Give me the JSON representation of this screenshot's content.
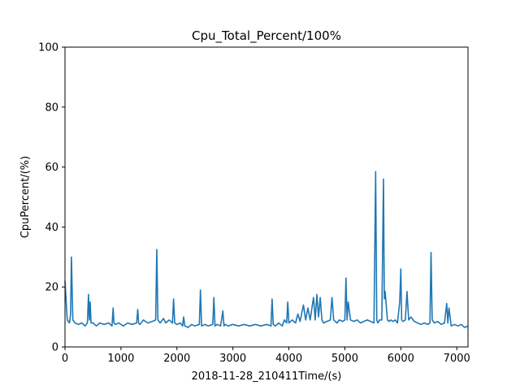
{
  "chart_data": {
    "type": "line",
    "title": "Cpu_Total_Percent/100%",
    "xlabel": "2018-11-28_210411Time/(s)",
    "ylabel": "CpuPercent/(%)",
    "xlim": [
      0,
      7200
    ],
    "ylim": [
      0,
      100
    ],
    "xticks": [
      0,
      1000,
      2000,
      3000,
      4000,
      5000,
      6000,
      7000
    ],
    "yticks": [
      0,
      20,
      40,
      60,
      80,
      100
    ],
    "grid": false,
    "legend": "none",
    "color": "#1f77b4",
    "series": [
      {
        "x": [
          0,
          40,
          80,
          100,
          115,
          140,
          180,
          240,
          300,
          360,
          400,
          420,
          435,
          450,
          465,
          500,
          560,
          620,
          700,
          780,
          840,
          860,
          875,
          900,
          960,
          1040,
          1120,
          1200,
          1280,
          1300,
          1315,
          1340,
          1400,
          1480,
          1560,
          1620,
          1640,
          1660,
          1700,
          1760,
          1800,
          1860,
          1920,
          1940,
          1960,
          2000,
          2060,
          2100,
          2120,
          2140,
          2200,
          2260,
          2320,
          2400,
          2420,
          2440,
          2500,
          2560,
          2640,
          2660,
          2680,
          2720,
          2780,
          2820,
          2840,
          2860,
          2920,
          3000,
          3100,
          3200,
          3300,
          3400,
          3500,
          3600,
          3680,
          3700,
          3720,
          3760,
          3820,
          3880,
          3920,
          3960,
          3980,
          4000,
          4060,
          4120,
          4160,
          4200,
          4260,
          4300,
          4340,
          4380,
          4440,
          4470,
          4500,
          4530,
          4560,
          4590,
          4620,
          4680,
          4740,
          4770,
          4800,
          4860,
          4900,
          4960,
          5000,
          5020,
          5040,
          5060,
          5100,
          5160,
          5220,
          5280,
          5340,
          5400,
          5460,
          5520,
          5550,
          5570,
          5590,
          5620,
          5660,
          5690,
          5705,
          5720,
          5760,
          5790,
          5820,
          5860,
          5900,
          5940,
          5980,
          6000,
          6015,
          6040,
          6080,
          6110,
          6140,
          6180,
          6240,
          6300,
          6360,
          6420,
          6480,
          6520,
          6540,
          6560,
          6600,
          6660,
          6720,
          6780,
          6820,
          6840,
          6860,
          6900,
          6960,
          7020,
          7080,
          7140,
          7200
        ],
        "y": [
          22,
          9,
          8,
          11,
          30,
          9,
          8,
          7.5,
          8,
          7,
          8,
          17.5,
          9,
          15,
          8,
          8,
          7,
          8,
          7.5,
          8,
          7,
          13,
          8,
          7.5,
          8,
          7,
          8,
          7.5,
          8,
          12.5,
          8,
          7.5,
          9,
          8,
          8.5,
          9,
          32.5,
          9,
          8,
          9.5,
          8,
          9,
          8,
          16,
          8,
          7.5,
          8,
          7,
          10,
          7,
          6.5,
          7.5,
          7,
          7.5,
          19,
          7,
          7.5,
          7,
          7.5,
          16.5,
          7,
          7.5,
          7,
          12,
          7,
          7.5,
          7,
          7.5,
          7,
          7.5,
          7,
          7.5,
          7,
          7.5,
          7,
          16,
          7.5,
          7,
          8,
          7,
          9,
          8,
          15,
          8,
          9,
          8,
          11,
          8.5,
          14,
          9,
          13,
          9,
          16.5,
          9,
          17.5,
          10,
          16.5,
          9,
          8,
          8.5,
          9,
          16.5,
          9,
          8,
          9,
          8.5,
          9,
          23,
          9,
          15,
          9,
          8.5,
          9,
          8,
          8.5,
          9,
          8.5,
          8,
          58.5,
          9,
          8,
          9,
          9,
          56,
          16,
          18.5,
          9,
          8.5,
          9,
          8.5,
          9,
          8,
          15,
          26,
          9,
          8.5,
          9,
          18.5,
          9,
          10,
          8.5,
          8,
          7.5,
          8,
          7.5,
          8,
          31.5,
          9,
          8,
          8.5,
          7.5,
          8,
          14.5,
          8,
          13,
          7,
          7.5,
          7,
          7.5,
          6.5,
          7
        ]
      }
    ]
  }
}
